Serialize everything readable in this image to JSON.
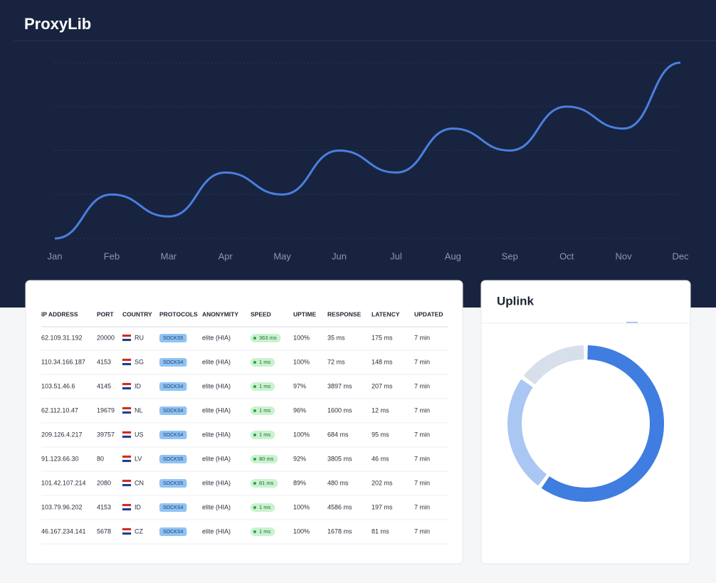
{
  "header": {
    "title": "ProxyLib"
  },
  "chart_data": [
    {
      "type": "line",
      "categories": [
        "Jan",
        "Feb",
        "Mar",
        "Apr",
        "May",
        "Jun",
        "Jul",
        "Aug",
        "Sep",
        "Oct",
        "Nov",
        "Dec"
      ],
      "values": [
        0,
        1,
        0.5,
        1.5,
        1,
        2,
        1.5,
        2.5,
        2,
        3,
        2.5,
        4
      ],
      "color": "#4a7fe0",
      "ylim": [
        0,
        4
      ],
      "grid_lines": [
        0,
        1,
        2,
        3,
        4
      ]
    },
    {
      "type": "pie",
      "title": "Uplink",
      "values": [
        60,
        25,
        15
      ],
      "colors": [
        "#3f7de0",
        "#aac6f3",
        "#d7dfeb"
      ]
    }
  ],
  "table": {
    "columns": [
      "IP ADDRESS",
      "PORT",
      "COUNTRY",
      "PROTOCOLS",
      "ANONYMITY",
      "SPEED",
      "UPTIME",
      "RESPONSE",
      "LATENCY",
      "UPDATED"
    ],
    "rows": [
      [
        "62.109.31.192",
        "20000",
        "RU",
        "SOCKS5",
        "elite (HIA)",
        "363 ms",
        "100%",
        "35 ms",
        "175 ms",
        "7 min"
      ],
      [
        "110.34.166.187",
        "4153",
        "SG",
        "SOCKS4",
        "elite (HIA)",
        "1 ms",
        "100%",
        "72 ms",
        "148 ms",
        "7 min"
      ],
      [
        "103.51.46.6",
        "4145",
        "ID",
        "SOCKS4",
        "elite (HIA)",
        "1 ms",
        "97%",
        "3897 ms",
        "207 ms",
        "7 min"
      ],
      [
        "62.112.10.47",
        "19679",
        "NL",
        "SOCKS4",
        "elite (HIA)",
        "1 ms",
        "96%",
        "1600 ms",
        "12 ms",
        "7 min"
      ],
      [
        "209.126.4.217",
        "39757",
        "US",
        "SOCKS4",
        "elite (HIA)",
        "1 ms",
        "100%",
        "684 ms",
        "95 ms",
        "7 min"
      ],
      [
        "91.123.66.30",
        "80",
        "LV",
        "SOCKS5",
        "elite (HIA)",
        "80 ms",
        "92%",
        "3805 ms",
        "46 ms",
        "7 min"
      ],
      [
        "101.42.107.214",
        "2080",
        "CN",
        "SOCKS5",
        "elite (HIA)",
        "81 ms",
        "89%",
        "480 ms",
        "202 ms",
        "7 min"
      ],
      [
        "103.79.96.202",
        "4153",
        "ID",
        "SOCKS4",
        "elite (HIA)",
        "1 ms",
        "100%",
        "4586 ms",
        "197 ms",
        "7 min"
      ],
      [
        "46.167.234.141",
        "5678",
        "CZ",
        "SOCKS4",
        "elite (HIA)",
        "1 ms",
        "100%",
        "1678 ms",
        "81 ms",
        "7 min"
      ]
    ]
  }
}
